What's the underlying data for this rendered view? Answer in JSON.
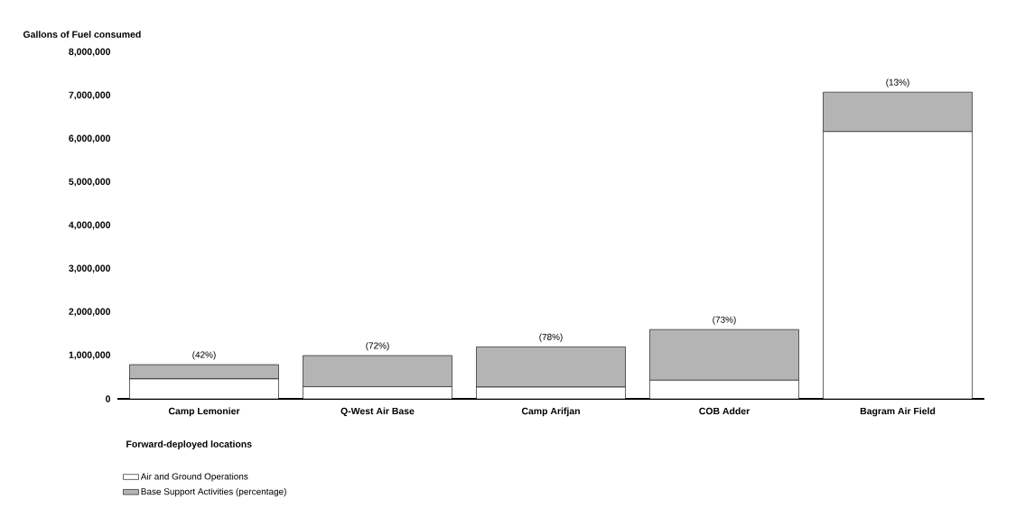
{
  "chart_data": {
    "type": "bar",
    "stacked": true,
    "xlabel": "Forward-deployed locations",
    "ylabel": "Gallons of Fuel consumed",
    "categories": [
      "Camp Lemonier",
      "Q-West Air Base",
      "Camp Arifjan",
      "COB Adder",
      "Bagram Air Field"
    ],
    "series": [
      {
        "name": "Air and Ground Operations",
        "color": "#ffffff",
        "values": [
          460000,
          280000,
          270000,
          430000,
          6170000
        ]
      },
      {
        "name": "Base Support Activities (percentage)",
        "color": "#b4b4b4",
        "values": [
          330000,
          720000,
          930000,
          1170000,
          910000
        ]
      }
    ],
    "annotations": [
      "(42%)",
      "(72%)",
      "(78%)",
      "(73%)",
      "(13%)"
    ],
    "ylim": [
      0,
      8000000
    ],
    "yticks": [
      {
        "value": 0,
        "label": "0"
      },
      {
        "value": 1000000,
        "label": "1,000,000"
      },
      {
        "value": 2000000,
        "label": "2,000,000"
      },
      {
        "value": 3000000,
        "label": "3,000,000"
      },
      {
        "value": 4000000,
        "label": "4,000,000"
      },
      {
        "value": 5000000,
        "label": "5,000,000"
      },
      {
        "value": 6000000,
        "label": "6,000,000"
      },
      {
        "value": 7000000,
        "label": "7,000,000"
      },
      {
        "value": 8000000,
        "label": "8,000,000"
      }
    ],
    "legend": "bottom left"
  }
}
